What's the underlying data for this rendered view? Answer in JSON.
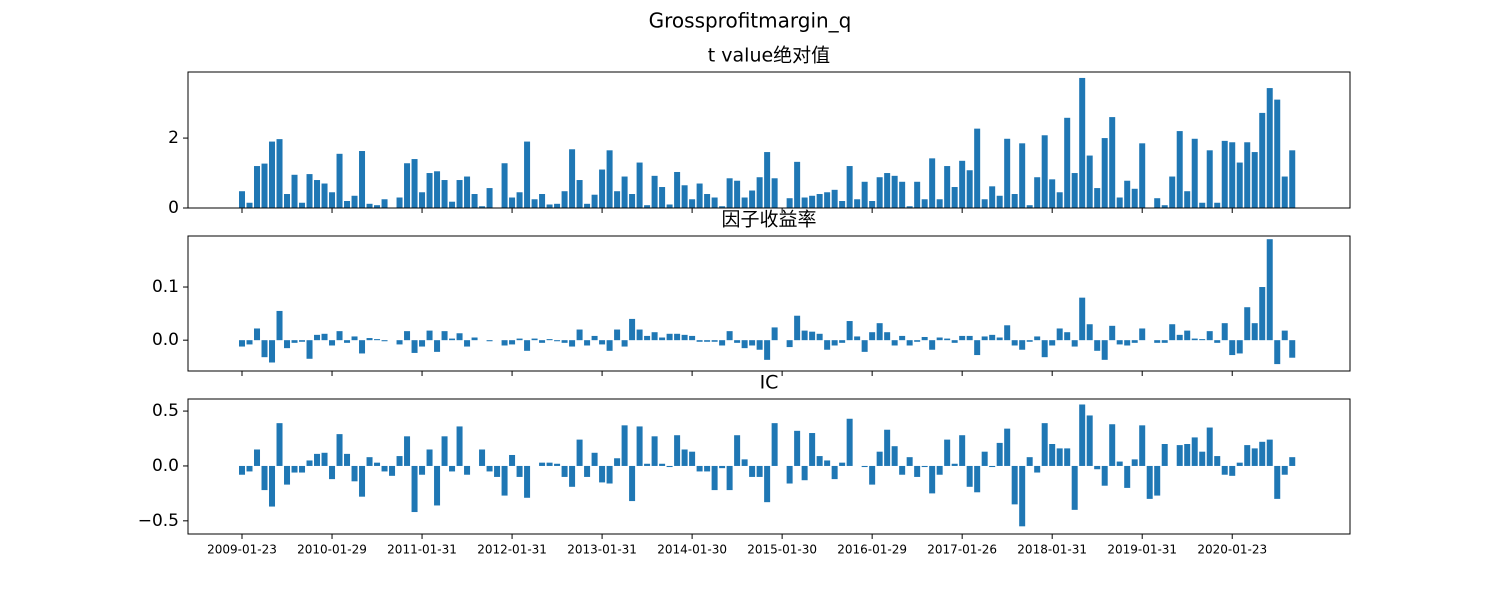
{
  "title": "Grossprofitmargin_q",
  "chart_data": [
    {
      "type": "bar",
      "title": "t value绝对值",
      "color": "#1f77b4",
      "ylim": [
        0,
        3.89
      ],
      "yticks": [
        0,
        2
      ],
      "values": [
        0.48,
        0.15,
        1.2,
        1.27,
        1.9,
        1.97,
        0.4,
        0.95,
        0.15,
        0.97,
        0.8,
        0.7,
        0.45,
        1.55,
        0.2,
        0.35,
        1.63,
        0.12,
        0.08,
        0.25,
        0.0,
        0.3,
        1.28,
        1.4,
        0.45,
        1.0,
        1.05,
        0.8,
        0.18,
        0.8,
        0.9,
        0.4,
        0.05,
        0.57,
        0.0,
        1.28,
        0.3,
        0.45,
        1.9,
        0.25,
        0.4,
        0.1,
        0.12,
        0.48,
        1.68,
        0.8,
        0.12,
        0.38,
        1.1,
        1.65,
        0.48,
        0.9,
        0.4,
        1.3,
        0.08,
        0.92,
        0.6,
        0.1,
        1.03,
        0.65,
        0.25,
        0.7,
        0.4,
        0.3,
        0.05,
        0.85,
        0.78,
        0.3,
        0.5,
        0.88,
        1.6,
        0.85,
        0.0,
        0.28,
        1.32,
        0.3,
        0.35,
        0.4,
        0.45,
        0.52,
        0.2,
        1.2,
        0.25,
        0.75,
        0.2,
        0.88,
        1.0,
        0.92,
        0.75,
        0.05,
        0.75,
        0.25,
        1.42,
        0.25,
        1.2,
        0.6,
        1.35,
        1.08,
        2.27,
        0.25,
        0.62,
        0.35,
        1.98,
        0.4,
        1.85,
        0.08,
        0.88,
        2.08,
        0.82,
        0.45,
        2.58,
        1.0,
        3.72,
        1.5,
        0.57,
        2.0,
        2.6,
        0.3,
        0.78,
        0.55,
        1.85,
        0.0,
        0.28,
        0.08,
        0.9,
        2.2,
        0.48,
        1.98,
        0.15,
        1.65,
        0.15,
        1.92,
        1.88,
        1.3,
        1.88,
        1.6,
        2.72,
        3.43,
        3.1,
        0.9,
        1.65
      ]
    },
    {
      "type": "bar",
      "title": "因子收益率",
      "color": "#1f77b4",
      "ylim": [
        -0.058,
        0.196
      ],
      "yticks": [
        {
          "value": 0,
          "label": "0.0"
        },
        0.1
      ],
      "values": [
        -0.012,
        -0.008,
        0.022,
        -0.032,
        -0.042,
        0.055,
        -0.015,
        -0.005,
        -0.003,
        -0.035,
        0.01,
        0.012,
        -0.01,
        0.017,
        -0.005,
        0.007,
        -0.025,
        0.004,
        0.002,
        -0.002,
        0.0,
        -0.008,
        0.017,
        -0.024,
        -0.012,
        0.018,
        -0.022,
        0.017,
        0.003,
        0.013,
        -0.012,
        0.005,
        0.0,
        -0.002,
        0.0,
        -0.01,
        -0.008,
        0.003,
        -0.02,
        0.003,
        -0.005,
        0.002,
        -0.002,
        -0.005,
        -0.012,
        0.02,
        -0.01,
        0.008,
        -0.008,
        -0.02,
        0.02,
        -0.012,
        0.04,
        0.02,
        0.008,
        0.015,
        0.005,
        0.012,
        0.012,
        0.01,
        0.008,
        -0.003,
        -0.003,
        -0.003,
        -0.01,
        0.017,
        -0.005,
        -0.015,
        -0.01,
        -0.018,
        -0.037,
        0.024,
        0.0,
        -0.013,
        0.046,
        0.018,
        0.016,
        0.012,
        -0.018,
        -0.01,
        -0.005,
        0.036,
        0.007,
        -0.022,
        0.015,
        0.032,
        0.015,
        -0.01,
        0.008,
        -0.01,
        -0.003,
        0.006,
        -0.018,
        0.005,
        0.003,
        -0.005,
        0.008,
        0.008,
        -0.028,
        0.007,
        0.01,
        0.005,
        0.028,
        -0.01,
        -0.018,
        -0.003,
        0.007,
        -0.032,
        -0.01,
        0.022,
        0.015,
        -0.012,
        0.08,
        0.03,
        -0.02,
        -0.037,
        0.027,
        -0.008,
        -0.01,
        -0.005,
        0.022,
        0.0,
        -0.005,
        -0.005,
        0.03,
        0.01,
        0.018,
        0.003,
        0.002,
        0.017,
        -0.005,
        0.032,
        -0.028,
        -0.025,
        0.062,
        0.032,
        0.1,
        0.19,
        -0.045,
        0.018,
        -0.033
      ]
    },
    {
      "type": "bar",
      "title": "IC",
      "color": "#1f77b4",
      "ylim": [
        -0.62,
        0.61
      ],
      "yticks": [
        {
          "value": -0.5,
          "label": "−0.5"
        },
        {
          "value": 0,
          "label": "0.0"
        },
        0.5
      ],
      "categories": [
        "2009-01-23",
        null,
        null,
        null,
        null,
        null,
        null,
        null,
        null,
        null,
        null,
        null,
        "2010-01-29",
        null,
        null,
        null,
        null,
        null,
        null,
        null,
        null,
        null,
        null,
        null,
        "2011-01-31",
        null,
        null,
        null,
        null,
        null,
        null,
        null,
        null,
        null,
        null,
        null,
        "2012-01-31",
        null,
        null,
        null,
        null,
        null,
        null,
        null,
        null,
        null,
        null,
        null,
        "2013-01-31",
        null,
        null,
        null,
        null,
        null,
        null,
        null,
        null,
        null,
        null,
        null,
        "2014-01-30",
        null,
        null,
        null,
        null,
        null,
        null,
        null,
        null,
        null,
        null,
        null,
        "2015-01-30",
        null,
        null,
        null,
        null,
        null,
        null,
        null,
        null,
        null,
        null,
        null,
        "2016-01-29",
        null,
        null,
        null,
        null,
        null,
        null,
        null,
        null,
        null,
        null,
        null,
        "2017-01-26",
        null,
        null,
        null,
        null,
        null,
        null,
        null,
        null,
        null,
        null,
        null,
        "2018-01-31",
        null,
        null,
        null,
        null,
        null,
        null,
        null,
        null,
        null,
        null,
        null,
        "2019-01-31",
        null,
        null,
        null,
        null,
        null,
        null,
        null,
        null,
        null,
        null,
        null,
        "2020-01-23",
        null,
        null,
        null,
        null,
        null,
        null,
        null,
        null
      ],
      "values": [
        -0.08,
        -0.05,
        0.15,
        -0.22,
        -0.37,
        0.39,
        -0.17,
        -0.06,
        -0.06,
        0.05,
        0.11,
        0.12,
        -0.12,
        0.29,
        0.11,
        -0.14,
        -0.28,
        0.08,
        0.03,
        -0.05,
        -0.09,
        0.09,
        0.27,
        -0.42,
        -0.08,
        0.15,
        -0.36,
        0.27,
        -0.05,
        0.36,
        -0.08,
        0.0,
        0.15,
        -0.05,
        -0.1,
        -0.27,
        0.1,
        -0.1,
        -0.29,
        0.0,
        0.03,
        0.03,
        0.02,
        -0.1,
        -0.19,
        0.24,
        -0.1,
        0.12,
        -0.15,
        -0.16,
        0.07,
        0.37,
        -0.32,
        0.36,
        0.02,
        0.27,
        0.02,
        -0.01,
        0.28,
        0.15,
        0.13,
        -0.05,
        -0.05,
        -0.22,
        -0.02,
        -0.22,
        0.28,
        0.06,
        -0.1,
        -0.1,
        -0.33,
        0.39,
        0.0,
        -0.16,
        0.32,
        -0.13,
        0.3,
        0.09,
        0.05,
        -0.12,
        0.03,
        0.43,
        0.0,
        -0.01,
        -0.17,
        0.13,
        0.33,
        0.18,
        -0.08,
        0.08,
        -0.1,
        -0.01,
        -0.25,
        -0.08,
        0.24,
        0.02,
        0.28,
        -0.19,
        -0.24,
        0.13,
        -0.01,
        0.21,
        0.34,
        -0.35,
        -0.55,
        0.08,
        -0.06,
        0.39,
        0.2,
        0.16,
        0.16,
        -0.4,
        0.56,
        0.46,
        -0.03,
        -0.18,
        0.38,
        0.04,
        -0.2,
        0.06,
        0.37,
        -0.3,
        -0.27,
        0.2,
        0.0,
        0.19,
        0.2,
        0.26,
        0.13,
        0.35,
        0.09,
        -0.08,
        -0.09,
        0.03,
        0.19,
        0.16,
        0.22,
        0.24,
        -0.3,
        -0.08,
        0.08
      ]
    }
  ]
}
